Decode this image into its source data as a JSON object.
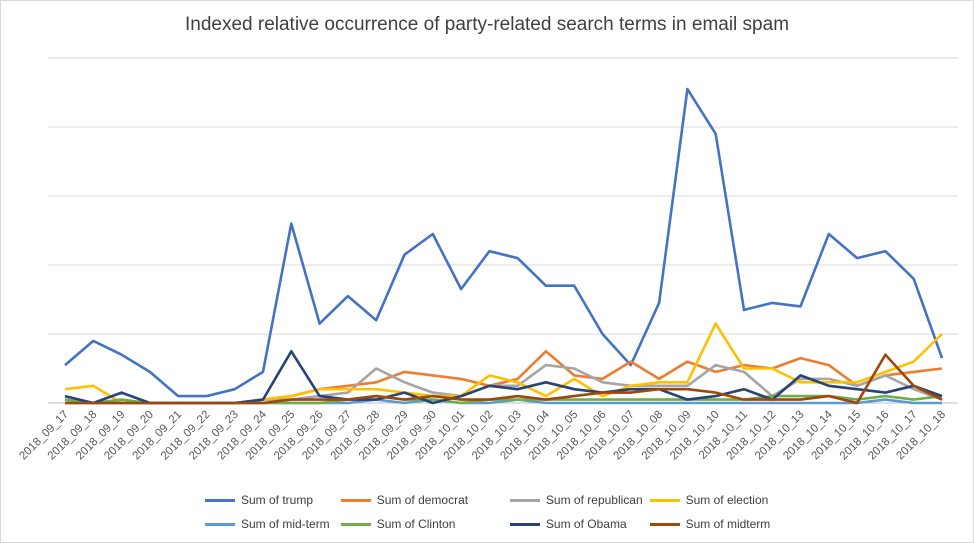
{
  "chart_data": {
    "type": "line",
    "title": "Indexed relative occurrence of party-related search terms in email spam",
    "xlabel": "",
    "ylabel": "",
    "ylim": [
      0,
      100
    ],
    "grid": true,
    "legend": "bottom",
    "categories": [
      "2018_09_17",
      "2018_09_18",
      "2018_09_19",
      "2018_09_20",
      "2018_09_21",
      "2018_09_22",
      "2018_09_23",
      "2018_09_24",
      "2018_09_25",
      "2018_09_26",
      "2018_09_27",
      "2018_09_28",
      "2018_09_29",
      "2018_09_30",
      "2018_10_01",
      "2018_10_02",
      "2018_10_03",
      "2018_10_04",
      "2018_10_05",
      "2018_10_06",
      "2018_10_07",
      "2018_10_08",
      "2018_10_09",
      "2018_10_10",
      "2018_10_11",
      "2018_10_12",
      "2018_10_13",
      "2018_10_14",
      "2018_10_15",
      "2018_10_16",
      "2018_10_17",
      "2018_10_18"
    ],
    "series": [
      {
        "name": "Sum of trump",
        "color": "#4472c4",
        "values": [
          11,
          18,
          14,
          9,
          2,
          2,
          4,
          9,
          52,
          23,
          31,
          24,
          43,
          49,
          33,
          44,
          42,
          34,
          34,
          20,
          11,
          29,
          91,
          78,
          27,
          29,
          28,
          49,
          42,
          44,
          36,
          13
        ]
      },
      {
        "name": "Sum of democrat",
        "color": "#ed7d31",
        "values": [
          0,
          0,
          0,
          0,
          0,
          0,
          0,
          1,
          2,
          4,
          5,
          6,
          9,
          8,
          7,
          5,
          7,
          15,
          8,
          7,
          12,
          7,
          12,
          9,
          11,
          10,
          13,
          11,
          5,
          8,
          9,
          10
        ]
      },
      {
        "name": "Sum of republican",
        "color": "#a5a5a5",
        "values": [
          1,
          0,
          0,
          0,
          0,
          0,
          0,
          1,
          1,
          2,
          3,
          10,
          6,
          3,
          2,
          5,
          5,
          11,
          10,
          6,
          5,
          5,
          5,
          11,
          9,
          2,
          7,
          7,
          5,
          8,
          4,
          1
        ]
      },
      {
        "name": "Sum of election",
        "color": "#ffc000",
        "values": [
          4,
          5,
          0,
          0,
          0,
          0,
          0,
          1,
          2,
          4,
          4,
          4,
          3,
          2,
          2,
          8,
          6,
          2,
          7,
          2,
          5,
          6,
          6,
          23,
          10,
          10,
          6,
          6,
          6,
          9,
          12,
          20
        ]
      },
      {
        "name": "Sum of mid-term",
        "color": "#5b9bd5",
        "values": [
          0,
          0,
          0,
          0,
          0,
          0,
          0,
          0,
          0,
          0,
          0,
          1,
          0,
          1,
          0,
          0,
          1,
          0,
          0,
          0,
          0,
          0,
          0,
          0,
          0,
          0,
          0,
          0,
          0,
          1,
          0,
          0
        ]
      },
      {
        "name": "Sum of Clinton",
        "color": "#70ad47",
        "values": [
          1,
          0,
          1,
          0,
          0,
          0,
          0,
          0,
          0,
          0,
          1,
          2,
          1,
          1,
          0,
          1,
          1,
          1,
          1,
          1,
          1,
          1,
          1,
          1,
          1,
          2,
          2,
          2,
          1,
          2,
          1,
          2
        ]
      },
      {
        "name": "Sum of Obama",
        "color": "#264478",
        "values": [
          2,
          0,
          3,
          0,
          0,
          0,
          0,
          1,
          15,
          2,
          1,
          1,
          3,
          0,
          2,
          5,
          4,
          6,
          4,
          3,
          4,
          4,
          1,
          2,
          4,
          1,
          8,
          5,
          4,
          3,
          5,
          2
        ]
      },
      {
        "name": "Sum of midterm",
        "color": "#9e480e",
        "values": [
          0,
          0,
          0,
          0,
          0,
          0,
          0,
          0,
          1,
          1,
          1,
          2,
          1,
          2,
          1,
          1,
          2,
          1,
          2,
          3,
          3,
          4,
          4,
          3,
          1,
          1,
          1,
          2,
          0,
          14,
          5,
          1
        ]
      }
    ]
  }
}
